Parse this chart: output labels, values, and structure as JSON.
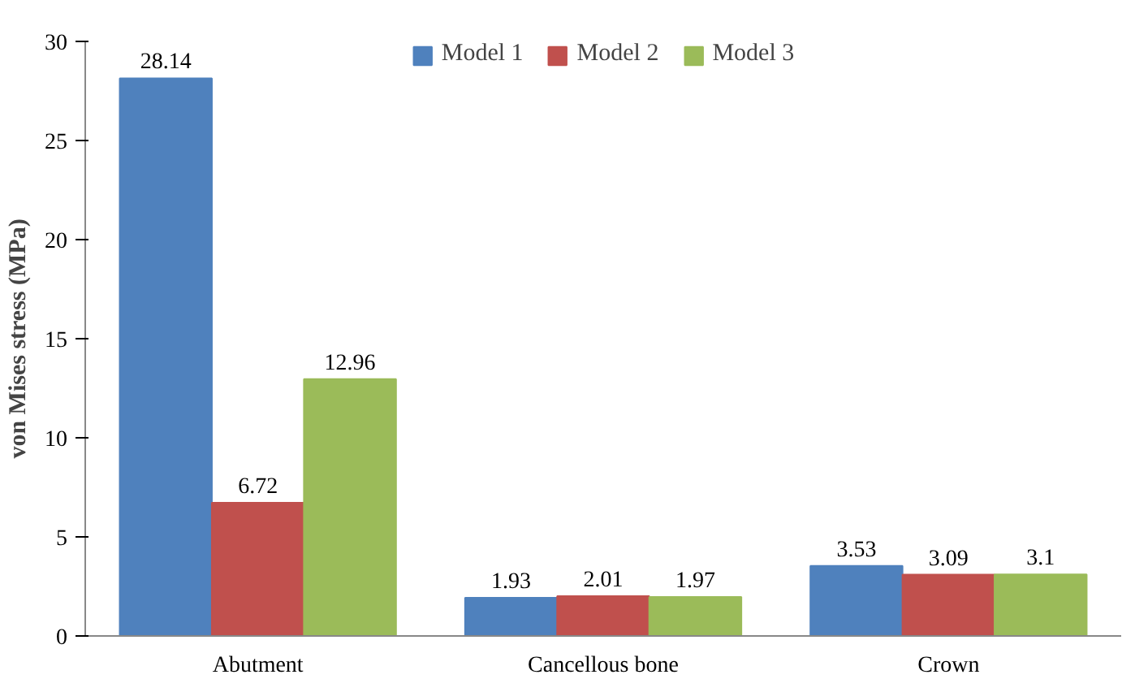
{
  "chart_data": {
    "type": "bar",
    "ylabel": "von Mises stress (MPa)",
    "categories": [
      "Abutment",
      "Cancellous bone",
      "Crown"
    ],
    "series": [
      {
        "name": "Model 1",
        "color": "#4f81bd",
        "values": [
          28.14,
          1.93,
          3.53
        ]
      },
      {
        "name": "Model 2",
        "color": "#c0504d",
        "values": [
          6.72,
          2.01,
          3.09
        ]
      },
      {
        "name": "Model 3",
        "color": "#9bbb59",
        "values": [
          12.96,
          1.97,
          3.1
        ]
      }
    ],
    "ylim": [
      0,
      30
    ],
    "yticks": [
      0,
      5,
      10,
      15,
      20,
      25,
      30
    ],
    "data_labels": true,
    "legend": "top",
    "grid": false
  }
}
